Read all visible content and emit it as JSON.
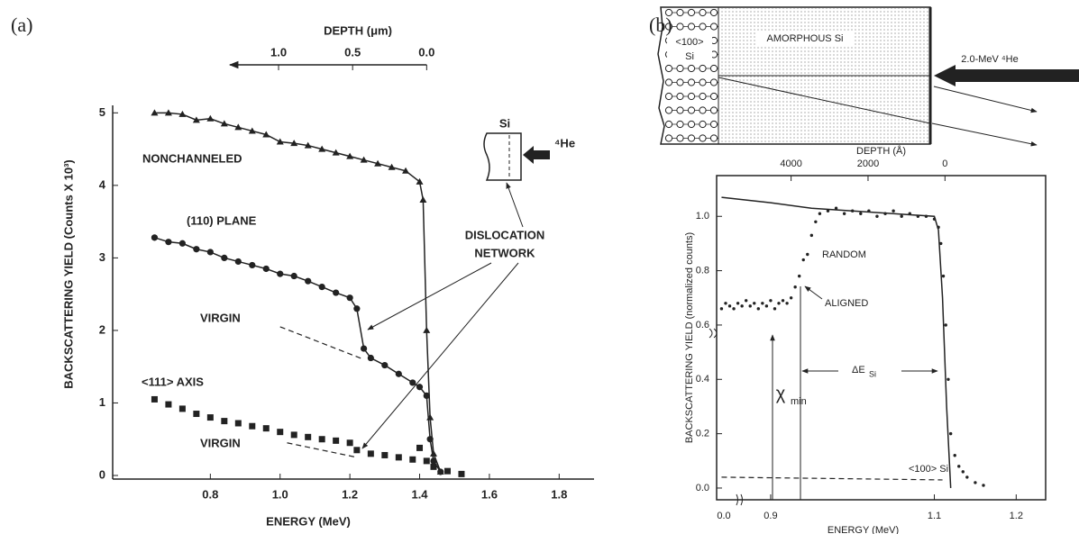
{
  "chart_data": [
    {
      "type": "scatter",
      "label": "(a)",
      "xlabel": "ENERGY (MeV)",
      "ylabel": "BACKSCATTERING YIELD (Counts X 10³)",
      "x2label": "DEPTH (μm)",
      "xlim": [
        0.52,
        1.9
      ],
      "xticks": [
        0.8,
        {
          "value": 1,
          "label": "1.0"
        },
        1.2,
        1.4,
        1.6,
        1.8
      ],
      "ylim": [
        0,
        5.6
      ],
      "yticks": [
        0,
        1,
        2,
        3,
        4,
        5
      ],
      "x2lim": [
        2.12,
        -1.13
      ],
      "x2ticks": [
        {
          "value": 1,
          "label": "1.0"
        },
        0.5,
        {
          "value": 0,
          "label": "0.0"
        }
      ],
      "series": [
        {
          "name": "NONCHANNELED",
          "color": "#222222",
          "marker": "triangle",
          "line": "solid",
          "x": [
            0.64,
            0.68,
            0.72,
            0.76,
            0.8,
            0.84,
            0.88,
            0.92,
            0.96,
            1.0,
            1.04,
            1.08,
            1.12,
            1.16,
            1.2,
            1.24,
            1.28,
            1.32,
            1.36,
            1.4,
            1.41,
            1.42,
            1.43,
            1.44,
            1.46
          ],
          "values": [
            5.0,
            5.0,
            4.98,
            4.9,
            4.92,
            4.85,
            4.8,
            4.75,
            4.7,
            4.6,
            4.58,
            4.55,
            4.5,
            4.45,
            4.4,
            4.35,
            4.3,
            4.25,
            4.2,
            4.05,
            3.8,
            2.0,
            0.8,
            0.3,
            0.05
          ]
        },
        {
          "name": "(110) PLANE",
          "color": "#222222",
          "marker": "circle",
          "line": "solid",
          "x": [
            0.64,
            0.68,
            0.72,
            0.76,
            0.8,
            0.84,
            0.88,
            0.92,
            0.96,
            1.0,
            1.04,
            1.08,
            1.12,
            1.16,
            1.2,
            1.22,
            1.24,
            1.26,
            1.3,
            1.34,
            1.38,
            1.4,
            1.42,
            1.43,
            1.44,
            1.46
          ],
          "values": [
            3.28,
            3.22,
            3.2,
            3.12,
            3.08,
            3.0,
            2.95,
            2.9,
            2.85,
            2.78,
            2.75,
            2.68,
            2.6,
            2.52,
            2.45,
            2.3,
            1.75,
            1.62,
            1.52,
            1.4,
            1.28,
            1.22,
            1.1,
            0.5,
            0.2,
            0.05
          ]
        },
        {
          "name": "<111> AXIS",
          "color": "#222222",
          "marker": "square",
          "line": "none",
          "x": [
            0.64,
            0.68,
            0.72,
            0.76,
            0.8,
            0.84,
            0.88,
            0.92,
            0.96,
            1.0,
            1.04,
            1.08,
            1.12,
            1.16,
            1.2,
            1.22,
            1.26,
            1.3,
            1.34,
            1.38,
            1.4,
            1.42,
            1.44,
            1.48,
            1.52
          ],
          "values": [
            1.05,
            0.98,
            0.92,
            0.85,
            0.8,
            0.75,
            0.72,
            0.68,
            0.65,
            0.6,
            0.56,
            0.53,
            0.5,
            0.48,
            0.45,
            0.35,
            0.3,
            0.28,
            0.25,
            0.22,
            0.38,
            0.2,
            0.12,
            0.06,
            0.02
          ]
        },
        {
          "name": "VIRGIN",
          "color": "#222222",
          "marker": "none",
          "line": "dashed",
          "x": [
            1.0,
            1.24
          ],
          "values": [
            2.05,
            1.6
          ]
        },
        {
          "name": "VIRGIN",
          "color": "#222222",
          "marker": "none",
          "line": "dashed",
          "x": [
            1.02,
            1.22
          ],
          "values": [
            0.45,
            0.25
          ]
        }
      ],
      "annotations": {
        "dislocation_1": "DISLOCATION",
        "dislocation_2": "NETWORK",
        "inset_si": "Si",
        "inset_he": "⁴He"
      }
    },
    {
      "type": "scatter",
      "label": "(b)",
      "xlabel": "ENERGY (MeV)",
      "ylabel": "BACKSCATTERING YIELD (normalized counts)",
      "x2label": "DEPTH (Å)",
      "xlim": [
        0.834,
        1.236
      ],
      "xticks": [
        0.9,
        1.1,
        1.2
      ],
      "x_break_label": "0.0",
      "ylim": [
        -0.02,
        1.15
      ],
      "yticks": [
        {
          "value": 0,
          "label": "0.0"
        },
        0.2,
        0.4,
        0.6,
        0.8,
        {
          "value": 1,
          "label": "1.0"
        }
      ],
      "x2lim": [
        5936,
        -2617
      ],
      "x2ticks": [
        4000,
        2000,
        0
      ],
      "series": [
        {
          "name": "ALIGNED",
          "color": "#222222",
          "marker": "dot",
          "line": "none",
          "x": [
            0.84,
            0.845,
            0.85,
            0.855,
            0.86,
            0.865,
            0.87,
            0.875,
            0.88,
            0.885,
            0.89,
            0.895,
            0.9,
            0.905,
            0.91,
            0.915,
            0.92,
            0.925,
            0.93,
            0.935,
            0.94,
            0.945,
            0.95,
            0.955,
            0.96,
            0.97,
            0.98,
            0.99,
            1.0,
            1.01,
            1.02,
            1.03,
            1.04,
            1.05,
            1.06,
            1.07,
            1.08,
            1.09,
            1.1,
            1.105,
            1.108,
            1.111,
            1.114,
            1.117,
            1.12,
            1.125,
            1.13,
            1.135,
            1.14,
            1.15,
            1.16
          ],
          "values": [
            0.66,
            0.68,
            0.67,
            0.66,
            0.68,
            0.67,
            0.69,
            0.67,
            0.68,
            0.66,
            0.68,
            0.67,
            0.69,
            0.66,
            0.68,
            0.69,
            0.68,
            0.7,
            0.74,
            0.78,
            0.84,
            0.86,
            0.93,
            0.98,
            1.01,
            1.02,
            1.03,
            1.01,
            1.02,
            1.01,
            1.02,
            1.0,
            1.01,
            1.02,
            1.0,
            1.01,
            1.0,
            1.0,
            0.99,
            0.96,
            0.9,
            0.78,
            0.6,
            0.4,
            0.2,
            0.12,
            0.08,
            0.06,
            0.04,
            0.02,
            0.01
          ]
        },
        {
          "name": "RANDOM",
          "color": "#222222",
          "marker": "none",
          "line": "solid",
          "x": [
            0.84,
            0.9,
            0.95,
            1.0,
            1.05,
            1.1,
            1.105,
            1.11,
            1.115,
            1.12
          ],
          "values": [
            1.07,
            1.05,
            1.03,
            1.02,
            1.01,
            1.0,
            0.95,
            0.7,
            0.3,
            0.0
          ]
        },
        {
          "name": "<100> Si",
          "color": "#222222",
          "marker": "none",
          "line": "dashed",
          "x": [
            0.84,
            1.11
          ],
          "values": [
            0.04,
            0.03
          ]
        }
      ],
      "annotations": {
        "chi": "χ",
        "chi_sub": "min",
        "delta": "ΔE",
        "delta_sub": "Si"
      }
    }
  ],
  "diagram": {
    "crystal_top": "<100>",
    "crystal_bottom": "Si",
    "amorphous": "AMORPHOUS Si",
    "beam": "2.0-MeV ⁴He"
  }
}
